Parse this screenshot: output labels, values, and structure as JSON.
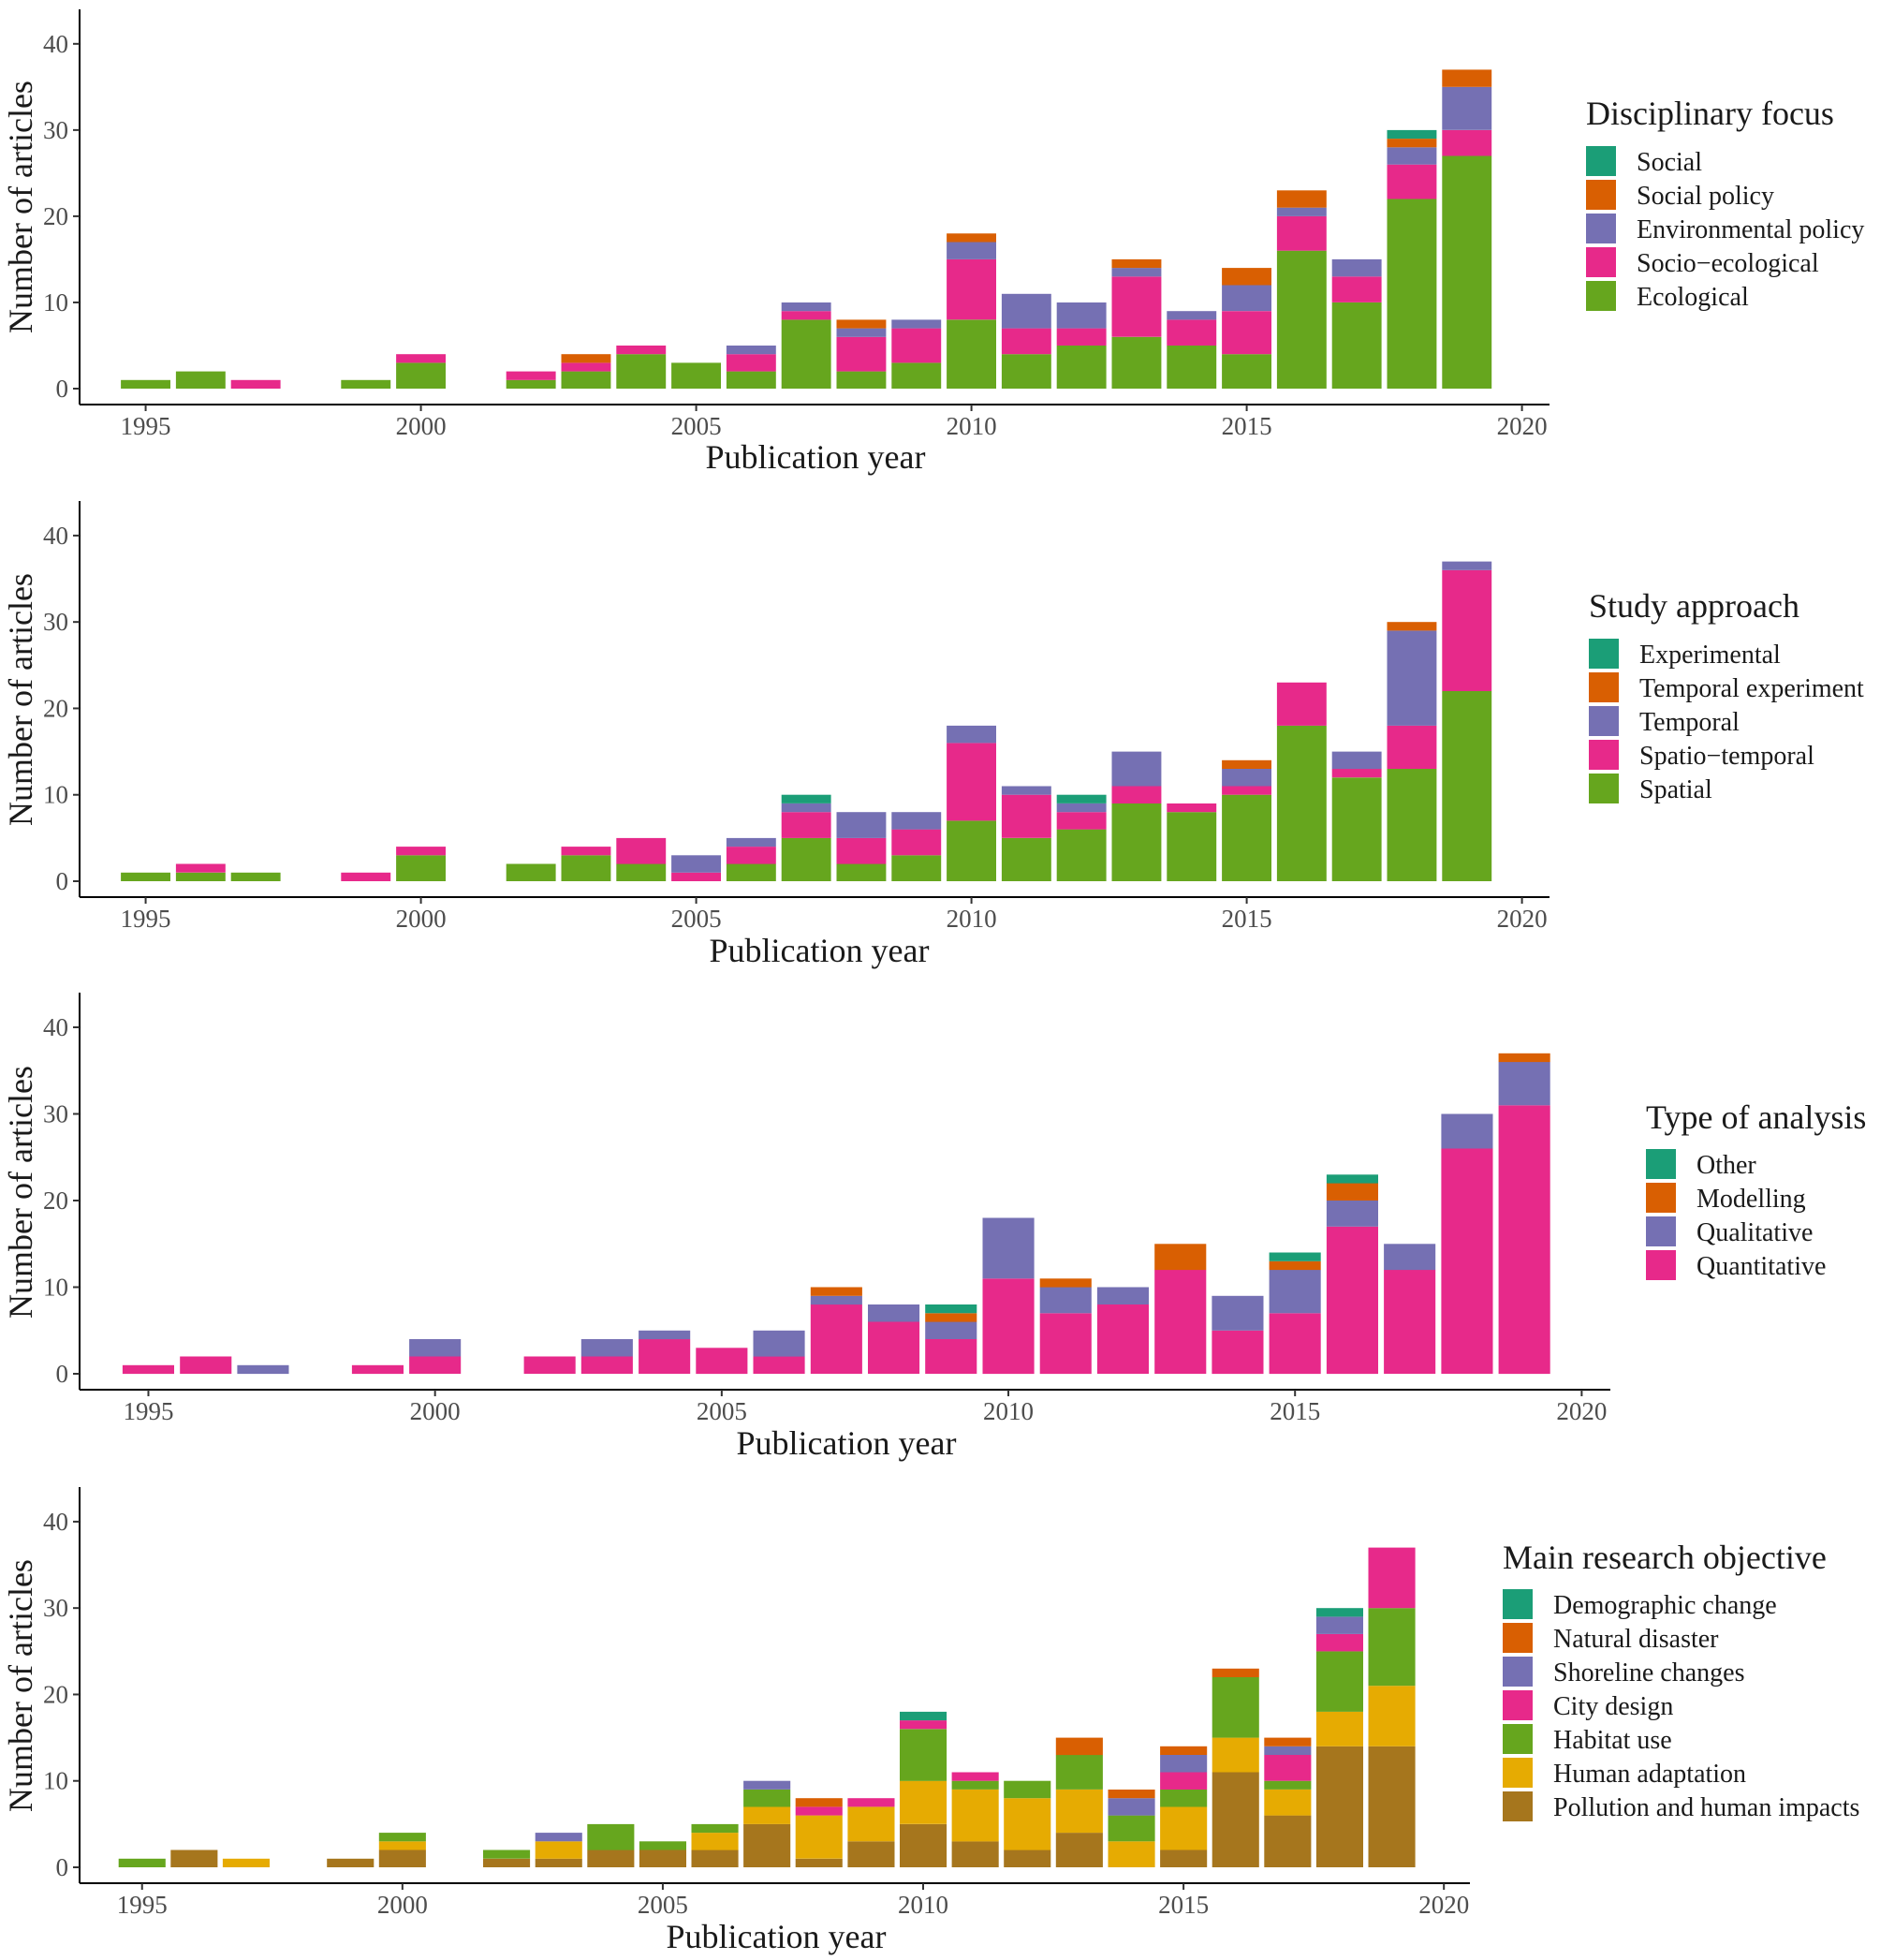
{
  "colors": {
    "teal": "#1B9E77",
    "orange": "#D95F02",
    "purple": "#7570B3",
    "pink": "#E7298A",
    "green": "#66A61E",
    "gold": "#E6AB02",
    "brown": "#A6761D"
  },
  "chart_data": [
    {
      "type": "bar",
      "stacked": true,
      "xlabel": "Publication year",
      "ylabel": "Number of articles",
      "legend_title": "Disciplinary focus",
      "xlim": [
        1993.8,
        2020.5
      ],
      "ylim": [
        0,
        44
      ],
      "x_ticks": [
        1995,
        2000,
        2005,
        2010,
        2015,
        2020
      ],
      "y_ticks": [
        0,
        10,
        20,
        30,
        40
      ],
      "x": [
        1995,
        1996,
        1997,
        1999,
        2000,
        2002,
        2003,
        2004,
        2005,
        2006,
        2007,
        2008,
        2009,
        2010,
        2011,
        2012,
        2013,
        2014,
        2015,
        2016,
        2017,
        2018,
        2019
      ],
      "series": [
        {
          "name": "Ecological",
          "color": "#66A61E",
          "values": [
            1,
            2,
            0,
            1,
            3,
            1,
            2,
            4,
            3,
            2,
            8,
            2,
            3,
            8,
            4,
            5,
            6,
            5,
            4,
            16,
            10,
            22,
            27
          ]
        },
        {
          "name": "Socio−ecological",
          "color": "#E7298A",
          "values": [
            0,
            0,
            1,
            0,
            1,
            1,
            1,
            1,
            0,
            2,
            1,
            4,
            4,
            7,
            3,
            2,
            7,
            3,
            5,
            4,
            3,
            4,
            3
          ]
        },
        {
          "name": "Environmental policy",
          "color": "#7570B3",
          "values": [
            0,
            0,
            0,
            0,
            0,
            0,
            0,
            0,
            0,
            1,
            1,
            1,
            1,
            2,
            4,
            3,
            1,
            1,
            3,
            1,
            2,
            2,
            5
          ]
        },
        {
          "name": "Social policy",
          "color": "#D95F02",
          "values": [
            0,
            0,
            0,
            0,
            0,
            0,
            1,
            0,
            0,
            0,
            0,
            1,
            0,
            1,
            0,
            0,
            1,
            0,
            2,
            2,
            0,
            1,
            2
          ]
        },
        {
          "name": "Social",
          "color": "#1B9E77",
          "values": [
            0,
            0,
            0,
            0,
            0,
            0,
            0,
            0,
            0,
            0,
            0,
            0,
            0,
            0,
            0,
            0,
            0,
            0,
            0,
            0,
            0,
            1,
            0
          ]
        }
      ]
    },
    {
      "type": "bar",
      "stacked": true,
      "xlabel": "Publication year",
      "ylabel": "Number of articles",
      "legend_title": "Study approach",
      "xlim": [
        1993.8,
        2020.5
      ],
      "ylim": [
        0,
        44
      ],
      "x_ticks": [
        1995,
        2000,
        2005,
        2010,
        2015,
        2020
      ],
      "y_ticks": [
        0,
        10,
        20,
        30,
        40
      ],
      "x": [
        1995,
        1996,
        1997,
        1999,
        2000,
        2002,
        2003,
        2004,
        2005,
        2006,
        2007,
        2008,
        2009,
        2010,
        2011,
        2012,
        2013,
        2014,
        2015,
        2016,
        2017,
        2018,
        2019
      ],
      "series": [
        {
          "name": "Spatial",
          "color": "#66A61E",
          "values": [
            1,
            1,
            1,
            0,
            3,
            2,
            3,
            2,
            0,
            2,
            5,
            2,
            3,
            7,
            5,
            6,
            9,
            8,
            10,
            18,
            12,
            13,
            22
          ]
        },
        {
          "name": "Spatio−temporal",
          "color": "#E7298A",
          "values": [
            0,
            1,
            0,
            1,
            1,
            0,
            1,
            3,
            1,
            2,
            3,
            3,
            3,
            9,
            5,
            2,
            2,
            1,
            1,
            5,
            1,
            5,
            14
          ]
        },
        {
          "name": "Temporal",
          "color": "#7570B3",
          "values": [
            0,
            0,
            0,
            0,
            0,
            0,
            0,
            0,
            2,
            1,
            1,
            3,
            2,
            2,
            1,
            1,
            4,
            0,
            2,
            0,
            2,
            11,
            1
          ]
        },
        {
          "name": "Temporal experiment",
          "color": "#D95F02",
          "values": [
            0,
            0,
            0,
            0,
            0,
            0,
            0,
            0,
            0,
            0,
            0,
            0,
            0,
            0,
            0,
            0,
            0,
            0,
            1,
            0,
            0,
            1,
            0
          ]
        },
        {
          "name": "Experimental",
          "color": "#1B9E77",
          "values": [
            0,
            0,
            0,
            0,
            0,
            0,
            0,
            0,
            0,
            0,
            1,
            0,
            0,
            0,
            0,
            1,
            0,
            0,
            0,
            0,
            0,
            0,
            0
          ]
        }
      ]
    },
    {
      "type": "bar",
      "stacked": true,
      "xlabel": "Publication year",
      "ylabel": "Number of articles",
      "legend_title": "Type of analysis",
      "xlim": [
        1993.8,
        2020.5
      ],
      "ylim": [
        0,
        44
      ],
      "x_ticks": [
        1995,
        2000,
        2005,
        2010,
        2015,
        2020
      ],
      "y_ticks": [
        0,
        10,
        20,
        30,
        40
      ],
      "x": [
        1995,
        1996,
        1997,
        1999,
        2000,
        2002,
        2003,
        2004,
        2005,
        2006,
        2007,
        2008,
        2009,
        2010,
        2011,
        2012,
        2013,
        2014,
        2015,
        2016,
        2017,
        2018,
        2019
      ],
      "series": [
        {
          "name": "Quantitative",
          "color": "#E7298A",
          "values": [
            1,
            2,
            0,
            1,
            2,
            2,
            2,
            4,
            3,
            2,
            8,
            6,
            4,
            11,
            7,
            8,
            12,
            5,
            7,
            17,
            12,
            26,
            31
          ]
        },
        {
          "name": "Qualitative",
          "color": "#7570B3",
          "values": [
            0,
            0,
            1,
            0,
            2,
            0,
            2,
            1,
            0,
            3,
            1,
            2,
            2,
            7,
            3,
            2,
            0,
            4,
            5,
            3,
            3,
            4,
            5
          ]
        },
        {
          "name": "Modelling",
          "color": "#D95F02",
          "values": [
            0,
            0,
            0,
            0,
            0,
            0,
            0,
            0,
            0,
            0,
            1,
            0,
            1,
            0,
            1,
            0,
            3,
            0,
            1,
            2,
            0,
            0,
            1
          ]
        },
        {
          "name": "Other",
          "color": "#1B9E77",
          "values": [
            0,
            0,
            0,
            0,
            0,
            0,
            0,
            0,
            0,
            0,
            0,
            0,
            1,
            0,
            0,
            0,
            0,
            0,
            1,
            1,
            0,
            0,
            0
          ]
        }
      ]
    },
    {
      "type": "bar",
      "stacked": true,
      "xlabel": "Publication year",
      "ylabel": "Number of articles",
      "legend_title": "Main research objective",
      "xlim": [
        1993.8,
        2020.5
      ],
      "ylim": [
        0,
        44
      ],
      "x_ticks": [
        1995,
        2000,
        2005,
        2010,
        2015,
        2020
      ],
      "y_ticks": [
        0,
        10,
        20,
        30,
        40
      ],
      "x": [
        1995,
        1996,
        1997,
        1999,
        2000,
        2002,
        2003,
        2004,
        2005,
        2006,
        2007,
        2008,
        2009,
        2010,
        2011,
        2012,
        2013,
        2014,
        2015,
        2016,
        2017,
        2018,
        2019
      ],
      "series": [
        {
          "name": "Pollution and human impacts",
          "color": "#A6761D",
          "values": [
            0,
            2,
            0,
            1,
            2,
            1,
            1,
            2,
            2,
            2,
            5,
            1,
            3,
            5,
            3,
            2,
            4,
            0,
            2,
            11,
            6,
            14,
            14
          ]
        },
        {
          "name": "Human adaptation",
          "color": "#E6AB02",
          "values": [
            0,
            0,
            1,
            0,
            1,
            0,
            2,
            0,
            0,
            2,
            2,
            5,
            4,
            5,
            6,
            6,
            5,
            3,
            5,
            4,
            3,
            4,
            7
          ]
        },
        {
          "name": "Habitat use",
          "color": "#66A61E",
          "values": [
            1,
            0,
            0,
            0,
            1,
            1,
            0,
            3,
            1,
            1,
            2,
            0,
            0,
            6,
            1,
            2,
            4,
            3,
            2,
            7,
            1,
            7,
            9
          ]
        },
        {
          "name": "City design",
          "color": "#E7298A",
          "values": [
            0,
            0,
            0,
            0,
            0,
            0,
            0,
            0,
            0,
            0,
            0,
            1,
            1,
            1,
            1,
            0,
            0,
            0,
            2,
            0,
            3,
            2,
            7
          ]
        },
        {
          "name": "Shoreline changes",
          "color": "#7570B3",
          "values": [
            0,
            0,
            0,
            0,
            0,
            0,
            1,
            0,
            0,
            0,
            1,
            0,
            0,
            0,
            0,
            0,
            0,
            2,
            2,
            0,
            1,
            2,
            0
          ]
        },
        {
          "name": "Natural disaster",
          "color": "#D95F02",
          "values": [
            0,
            0,
            0,
            0,
            0,
            0,
            0,
            0,
            0,
            0,
            0,
            1,
            0,
            0,
            0,
            0,
            2,
            1,
            1,
            1,
            1,
            0,
            0
          ]
        },
        {
          "name": "Demographic change",
          "color": "#1B9E77",
          "values": [
            0,
            0,
            0,
            0,
            0,
            0,
            0,
            0,
            0,
            0,
            0,
            0,
            0,
            1,
            0,
            0,
            0,
            0,
            0,
            0,
            0,
            1,
            0
          ]
        }
      ]
    }
  ]
}
